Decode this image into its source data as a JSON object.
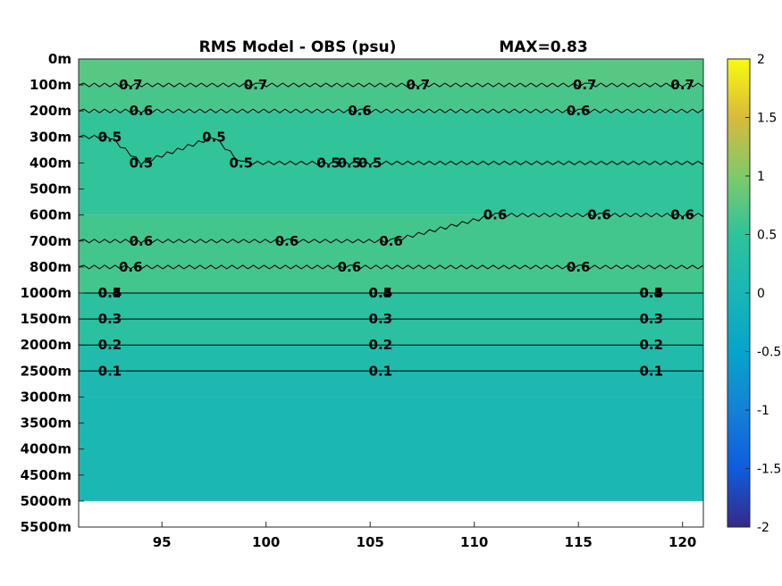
{
  "chart_data": {
    "type": "heatmap",
    "title": "RMS Model - OBS (psu)",
    "annotation": "MAX=0.83",
    "xlabel": "",
    "ylabel": "",
    "xlim": [
      91,
      121
    ],
    "x_ticks": [
      95,
      100,
      105,
      110,
      115,
      120
    ],
    "y_tick_labels": [
      "0m",
      "100m",
      "200m",
      "300m",
      "400m",
      "500m",
      "600m",
      "700m",
      "800m",
      "1000m",
      "1500m",
      "2000m",
      "2500m",
      "3000m",
      "3500m",
      "4000m",
      "4500m",
      "5000m",
      "5500m"
    ],
    "colorbar": {
      "clim": [
        -2,
        2
      ],
      "ticks": [
        "2",
        "1.5",
        "1",
        "0.5",
        "0",
        "-0.5",
        "-1",
        "-1.5",
        "-2"
      ],
      "colormap": "parula"
    },
    "field_bands": [
      {
        "depth_from": "0m",
        "depth_to": "100m",
        "value": 0.75
      },
      {
        "depth_from": "100m",
        "depth_to": "200m",
        "value": 0.66
      },
      {
        "depth_from": "200m",
        "depth_to": "600m",
        "value": 0.52
      },
      {
        "depth_from": "600m",
        "depth_to": "1000m",
        "value": 0.63
      },
      {
        "depth_from": "1000m",
        "depth_to": "2000m",
        "value": 0.4
      },
      {
        "depth_from": "2000m",
        "depth_to": "2500m",
        "value": 0.18
      },
      {
        "depth_from": "2500m",
        "depth_to": "3000m",
        "value": 0.1
      },
      {
        "depth_from": "3000m",
        "depth_to": "5000m",
        "value": 0.05
      }
    ],
    "contour_lines": [
      {
        "level": "0.7",
        "labels": [
          {
            "x": 93.5,
            "depth": "100m"
          },
          {
            "x": 99.5,
            "depth": "100m"
          },
          {
            "x": 107.3,
            "depth": "100m"
          },
          {
            "x": 115.3,
            "depth": "100m"
          },
          {
            "x": 120.0,
            "depth": "100m"
          }
        ]
      },
      {
        "level": "0.6",
        "labels": [
          {
            "x": 94.0,
            "depth": "200m"
          },
          {
            "x": 104.5,
            "depth": "200m"
          },
          {
            "x": 115.0,
            "depth": "200m"
          }
        ]
      },
      {
        "level": "0.5",
        "labels": [
          {
            "x": 92.5,
            "depth": "300m"
          },
          {
            "x": 97.5,
            "depth": "300m"
          },
          {
            "x": 94.0,
            "depth": "400m"
          },
          {
            "x": 98.8,
            "depth": "400m"
          },
          {
            "x": 103.0,
            "depth": "400m"
          },
          {
            "x": 104.0,
            "depth": "400m"
          },
          {
            "x": 105.0,
            "depth": "400m"
          }
        ]
      },
      {
        "level": "0.6",
        "labels": [
          {
            "x": 94.0,
            "depth": "700m"
          },
          {
            "x": 101.0,
            "depth": "700m"
          },
          {
            "x": 106.0,
            "depth": "700m"
          },
          {
            "x": 111.0,
            "depth": "600m"
          },
          {
            "x": 116.0,
            "depth": "600m"
          },
          {
            "x": 120.0,
            "depth": "600m"
          }
        ]
      },
      {
        "level": "0.6",
        "labels": [
          {
            "x": 93.5,
            "depth": "800m"
          },
          {
            "x": 104.0,
            "depth": "800m"
          },
          {
            "x": 115.0,
            "depth": "800m"
          }
        ]
      },
      {
        "level": "0.5",
        "labels": [
          {
            "x": 92.5,
            "depth": "1000m"
          },
          {
            "x": 105.5,
            "depth": "1000m"
          },
          {
            "x": 118.5,
            "depth": "1000m"
          }
        ]
      },
      {
        "level": "0.4",
        "labels": [
          {
            "x": 92.5,
            "depth": "1000m"
          },
          {
            "x": 105.5,
            "depth": "1000m"
          },
          {
            "x": 118.5,
            "depth": "1000m"
          }
        ]
      },
      {
        "level": "0.3",
        "labels": [
          {
            "x": 92.5,
            "depth": "1500m"
          },
          {
            "x": 105.5,
            "depth": "1500m"
          },
          {
            "x": 118.5,
            "depth": "1500m"
          }
        ]
      },
      {
        "level": "0.2",
        "labels": [
          {
            "x": 92.5,
            "depth": "2000m"
          },
          {
            "x": 105.5,
            "depth": "2000m"
          },
          {
            "x": 118.5,
            "depth": "2000m"
          }
        ]
      },
      {
        "level": "0.1",
        "labels": [
          {
            "x": 92.5,
            "depth": "2500m"
          },
          {
            "x": 105.5,
            "depth": "2500m"
          },
          {
            "x": 118.5,
            "depth": "2500m"
          }
        ]
      }
    ],
    "data_depth_limit": "5000m",
    "grid": false
  }
}
